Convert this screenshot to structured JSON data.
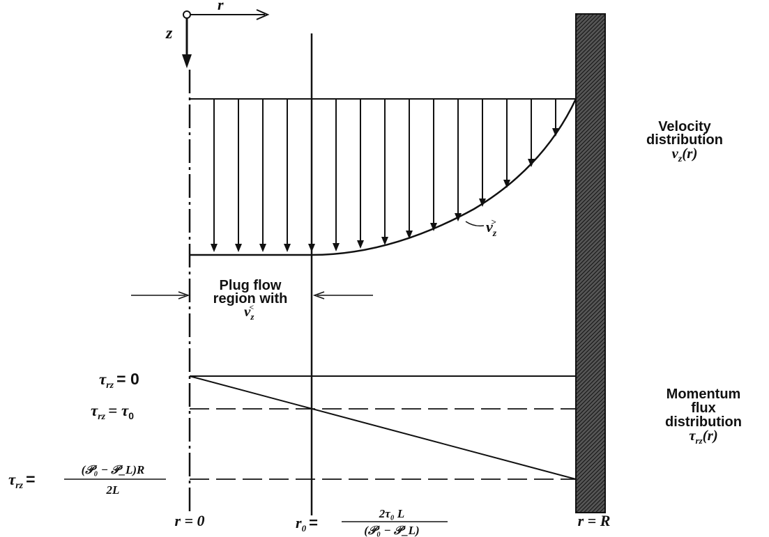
{
  "axes": {
    "r_axis_label": "r",
    "z_axis_label": "z"
  },
  "velocity_label": {
    "line1": "Velocity",
    "line2": "distribution",
    "symbol": "v",
    "symbol_sub": "z",
    "arg": "(r)"
  },
  "curve_label": {
    "symbol": "v",
    "symbol_sub": "z",
    "symbol_sup": ">"
  },
  "plug_label": {
    "line1": "Plug flow",
    "line2": "region with",
    "symbol": "v",
    "symbol_sub": "z",
    "symbol_sup": "<"
  },
  "flux_label": {
    "line1": "Momentum",
    "line2": "flux",
    "line3": "distribution",
    "symbol": "τ",
    "symbol_sub": "rz",
    "arg": "(r)"
  },
  "shear_levels": {
    "zero": {
      "symbol": "τ",
      "sub": "rz",
      "rhs": "= 0"
    },
    "yield": {
      "symbol": "τ",
      "sub": "rz",
      "rhs": "= τ",
      "rhs_sub": "0"
    },
    "wall": {
      "symbol": "τ",
      "sub": "rz",
      "eq": "=",
      "numerator": "(𝒫₀ − 𝒫_L)R",
      "denominator": "2L"
    }
  },
  "bottom_labels": {
    "center": "r = 0",
    "r0_lhs": "r",
    "r0_sub": "0",
    "r0_eq": "=",
    "r0_numerator": "2τ₀ L",
    "r0_denominator": "(𝒫₀ − 𝒫_L)",
    "wall": "r = R"
  }
}
